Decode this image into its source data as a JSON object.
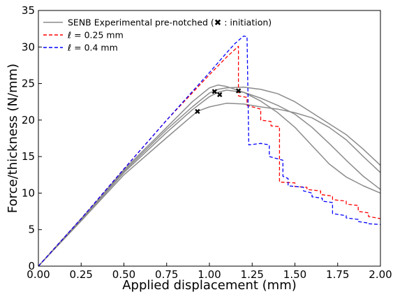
{
  "chart_data": {
    "type": "line",
    "xlabel": "Applied displacement (mm)",
    "ylabel": "Force/thickness (N/mm)",
    "xlim": [
      0,
      2
    ],
    "ylim": [
      0,
      35
    ],
    "xticks": [
      "0.00",
      "0.25",
      "0.50",
      "0.75",
      "1.00",
      "1.25",
      "1.50",
      "1.75",
      "2.00"
    ],
    "yticks": [
      "0",
      "5",
      "10",
      "15",
      "20",
      "25",
      "30",
      "35"
    ],
    "grid": false,
    "legend_position": "top-left",
    "legend": [
      {
        "label": "SENB Experimental pre-notched (✖ : initiation)",
        "color": "#8c8c8c",
        "style": "solid"
      },
      {
        "label": "ℓ = 0.25 mm",
        "color": "#ff0000",
        "style": "dashed"
      },
      {
        "label": "ℓ = 0.4 mm",
        "color": "#0000ff",
        "style": "dashed"
      }
    ],
    "series": [
      {
        "color": "#8c8c8c",
        "style": "solid",
        "group": "experimental",
        "x": [
          0,
          0.25,
          0.5,
          0.75,
          0.9,
          1.0,
          1.05,
          1.1,
          1.2,
          1.3,
          1.4,
          1.5,
          1.6,
          1.7,
          1.8,
          1.9,
          2.0
        ],
        "y": [
          0,
          6.5,
          13.0,
          18.7,
          21.8,
          23.7,
          24.2,
          24.4,
          24.5,
          24.2,
          23.6,
          22.5,
          21.0,
          19.5,
          18.0,
          16.0,
          13.8
        ]
      },
      {
        "color": "#8c8c8c",
        "style": "solid",
        "group": "experimental",
        "x": [
          0,
          0.25,
          0.5,
          0.75,
          0.9,
          1.0,
          1.05,
          1.1,
          1.2,
          1.3,
          1.4,
          1.5,
          1.6,
          1.7,
          1.8,
          1.9,
          2.0
        ],
        "y": [
          0,
          6.3,
          12.8,
          18.3,
          21.4,
          23.2,
          23.8,
          24.1,
          23.8,
          23.0,
          22.0,
          20.8,
          19.0,
          16.8,
          14.5,
          12.3,
          10.5
        ]
      },
      {
        "color": "#8c8c8c",
        "style": "solid",
        "group": "experimental",
        "x": [
          0,
          0.25,
          0.5,
          0.75,
          0.9,
          1.0,
          1.05,
          1.1,
          1.2,
          1.3,
          1.4,
          1.5,
          1.6,
          1.7,
          1.8,
          1.9,
          2.0
        ],
        "y": [
          0,
          6.4,
          13.2,
          19.0,
          22.5,
          24.4,
          24.8,
          24.6,
          23.8,
          22.6,
          21.0,
          19.0,
          16.5,
          14.0,
          12.2,
          11.0,
          10.0
        ]
      },
      {
        "color": "#8c8c8c",
        "style": "solid",
        "group": "experimental",
        "x": [
          0,
          0.25,
          0.5,
          0.75,
          0.9,
          0.93,
          1.0,
          1.1,
          1.2,
          1.3,
          1.4,
          1.5,
          1.6,
          1.7,
          1.8,
          1.9,
          2.0
        ],
        "y": [
          0,
          6.2,
          12.5,
          17.6,
          20.6,
          21.2,
          21.8,
          22.3,
          22.2,
          21.8,
          21.5,
          21.0,
          20.3,
          19.0,
          17.3,
          15.0,
          12.8
        ]
      },
      {
        "color": "#ff0000",
        "style": "dashed",
        "group": "l025",
        "x": [
          0,
          0.25,
          0.5,
          0.75,
          1.0,
          1.1,
          1.17,
          1.17,
          1.22,
          1.22,
          1.3,
          1.3,
          1.36,
          1.36,
          1.41,
          1.41,
          1.5,
          1.5,
          1.57,
          1.57,
          1.65,
          1.65,
          1.72,
          1.72,
          1.8,
          1.8,
          1.87,
          1.87,
          1.93,
          1.93,
          2.0
        ],
        "y": [
          0,
          6.5,
          13.3,
          20.0,
          26.2,
          28.6,
          30.1,
          23.3,
          23.1,
          22.0,
          21.5,
          20.0,
          19.8,
          19.2,
          19.1,
          11.5,
          11.4,
          10.9,
          10.8,
          10.5,
          10.3,
          9.8,
          9.6,
          9.1,
          8.9,
          8.5,
          8.3,
          7.5,
          7.3,
          6.8,
          6.5
        ]
      },
      {
        "color": "#0000ff",
        "style": "dashed",
        "group": "l04",
        "x": [
          0,
          0.25,
          0.5,
          0.75,
          1.0,
          1.1,
          1.15,
          1.2,
          1.22,
          1.23,
          1.3,
          1.35,
          1.35,
          1.43,
          1.43,
          1.46,
          1.46,
          1.55,
          1.55,
          1.6,
          1.6,
          1.66,
          1.66,
          1.72,
          1.72,
          1.8,
          1.8,
          1.87,
          1.87,
          1.93,
          1.93,
          2.0
        ],
        "y": [
          0,
          6.5,
          13.3,
          20.0,
          26.5,
          29.2,
          30.5,
          31.5,
          31.4,
          16.6,
          16.8,
          16.6,
          15.0,
          14.5,
          12.3,
          12.0,
          11.0,
          10.8,
          10.3,
          10.0,
          9.5,
          9.3,
          8.9,
          8.7,
          7.2,
          6.9,
          6.6,
          6.4,
          6.1,
          5.9,
          5.8,
          5.7
        ]
      }
    ],
    "initiation_markers": {
      "symbol": "✖",
      "x": [
        0.93,
        1.03,
        1.06,
        1.17
      ],
      "y": [
        21.2,
        23.9,
        23.5,
        24.0
      ]
    }
  }
}
